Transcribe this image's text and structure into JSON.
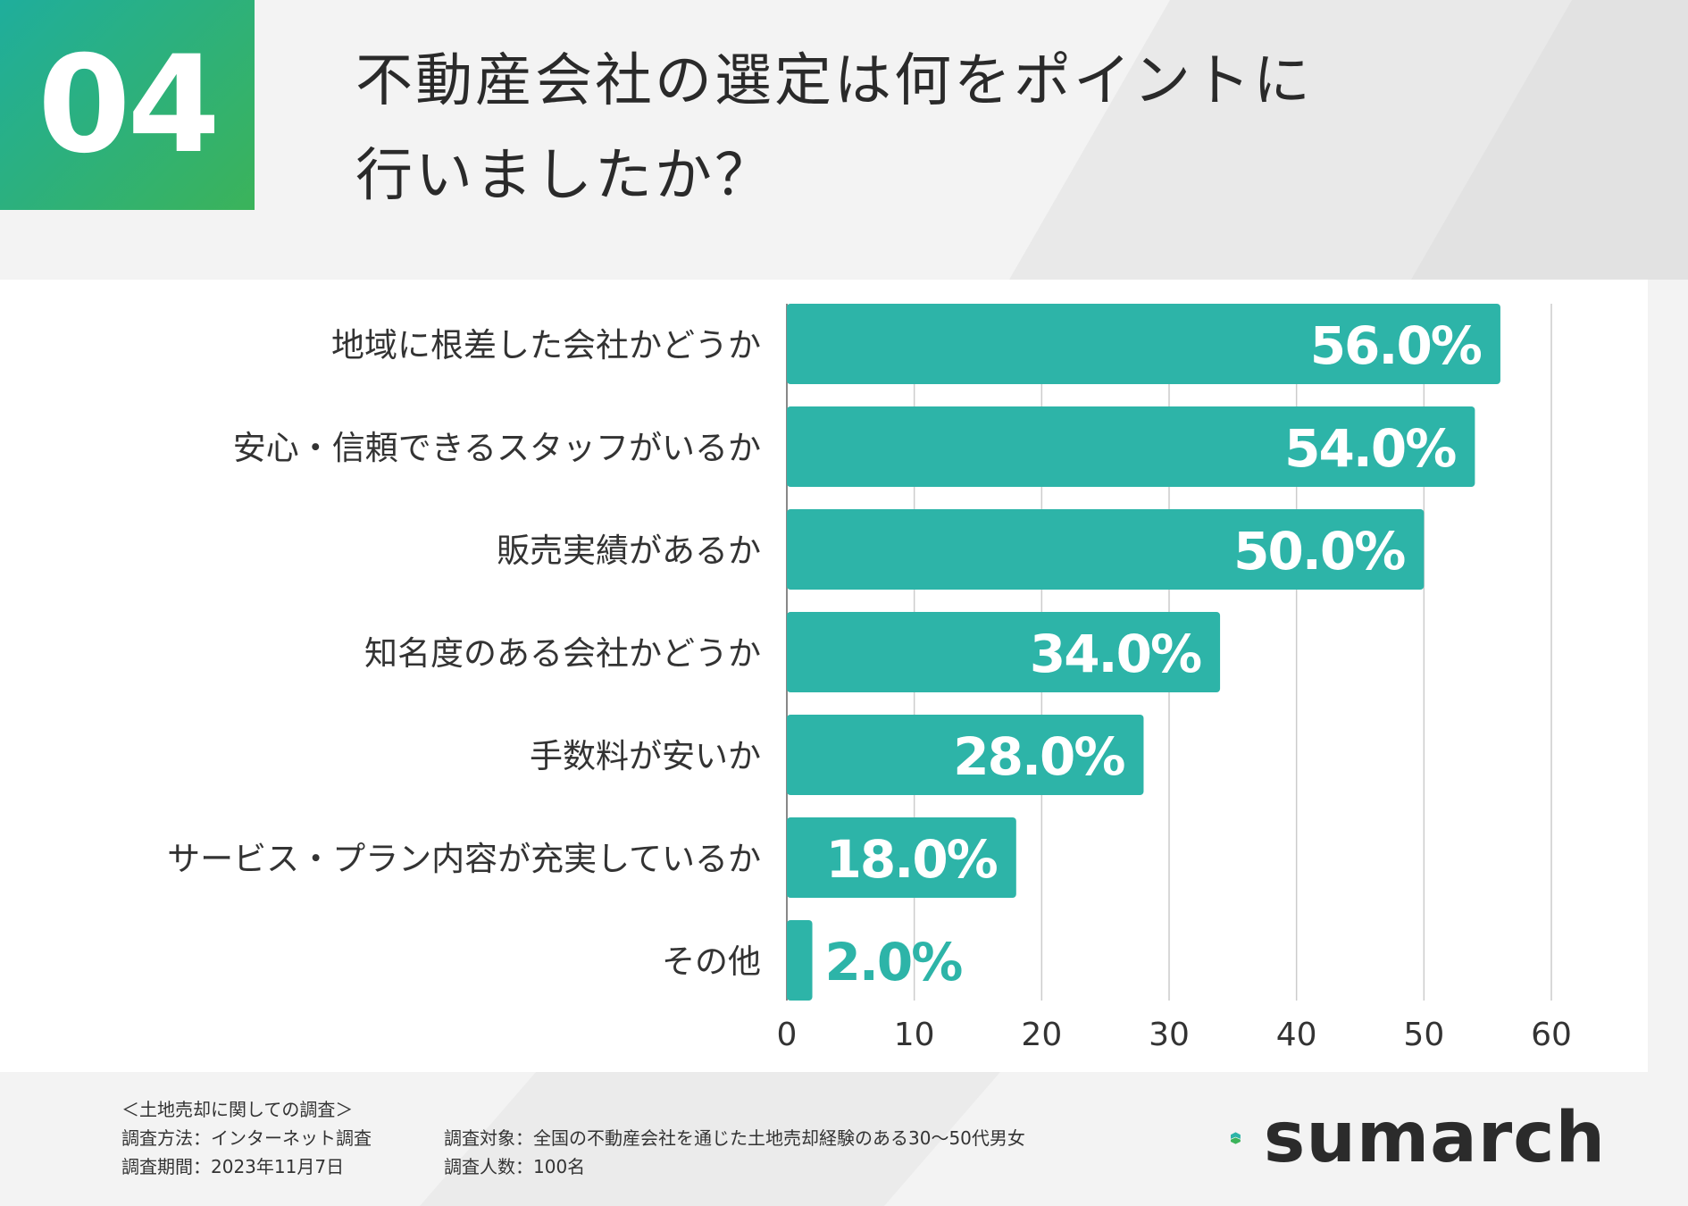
{
  "badge": {
    "number": "04"
  },
  "title": {
    "line1": "不動産会社の選定は何をポイントに",
    "line2": "行いましたか？"
  },
  "colors": {
    "bar": "#2db4a8",
    "accent_green": "#3bb35a",
    "grid": "#cccccc",
    "bg": "#f3f3f3"
  },
  "chart_data": {
    "type": "bar",
    "orientation": "horizontal",
    "title": "",
    "xlabel": "",
    "ylabel": "",
    "xlim": [
      0,
      60
    ],
    "ticks": [
      "0",
      "10",
      "20",
      "30",
      "40",
      "50",
      "60"
    ],
    "tick_values": [
      0,
      10,
      20,
      30,
      40,
      50,
      60
    ],
    "grid": true,
    "categories": [
      "地域に根差した会社かどうか",
      "安心・信頼できるスタッフがいるか",
      "販売実績があるか",
      "知名度のある会社かどうか",
      "手数料が安いか",
      "サービス・プラン内容が充実しているか",
      "その他"
    ],
    "values": [
      56.0,
      54.0,
      50.0,
      34.0,
      28.0,
      18.0,
      2.0
    ],
    "data_labels": [
      "56.0%",
      "54.0%",
      "50.0%",
      "34.0%",
      "28.0%",
      "18.0%",
      "2.0%"
    ]
  },
  "footer": {
    "survey_title": "＜土地売却に関しての調査＞",
    "method": "調査方法：インターネット調査",
    "period": "調査期間：2023年11月7日",
    "target": "調査対象：全国の不動産会社を通じた土地売却経験のある30〜50代男女",
    "count": "調査人数：100名"
  },
  "logo": {
    "text": "sumarch",
    "icon": "house-logo-icon"
  }
}
